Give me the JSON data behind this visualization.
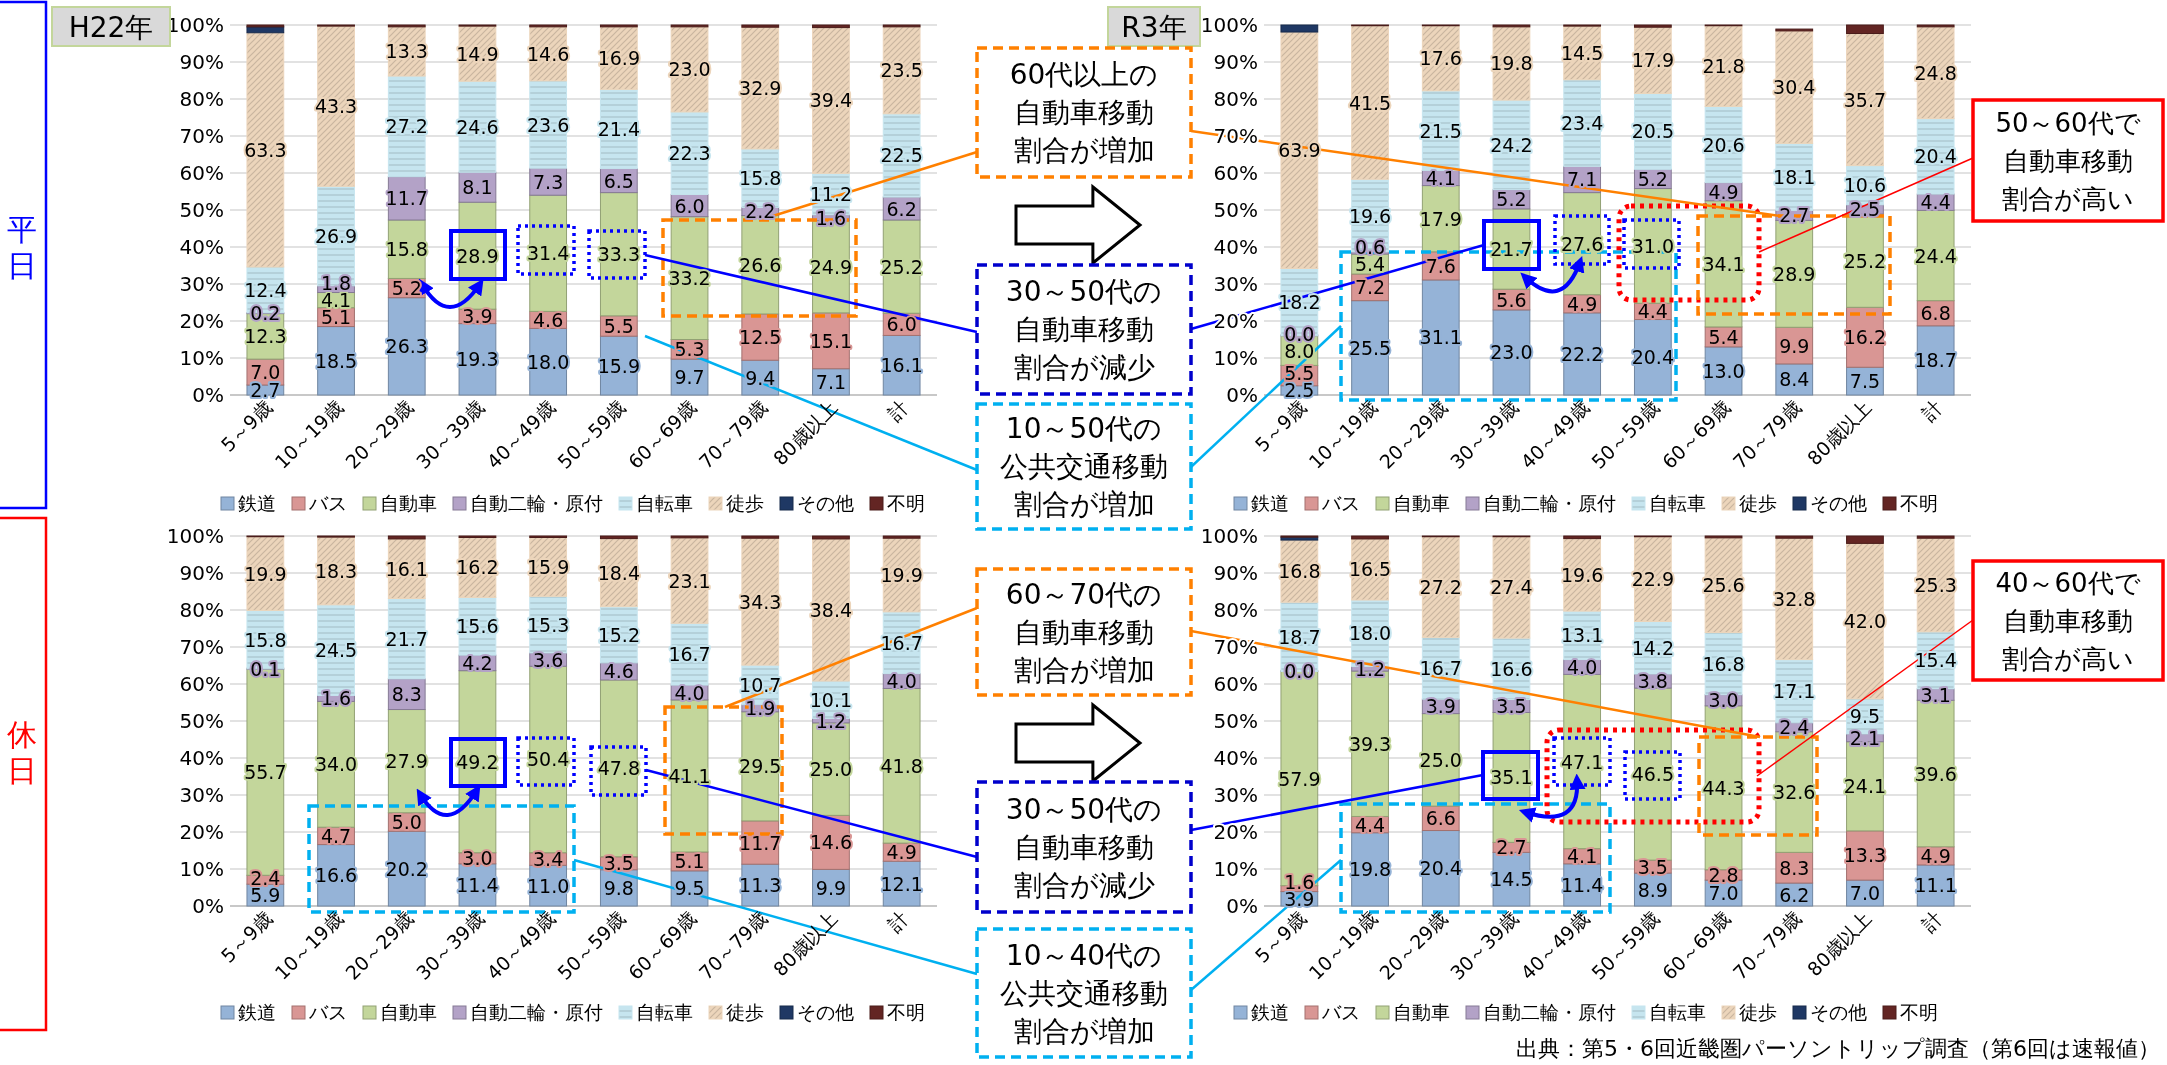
{
  "chart_data": [
    {
      "type": "bar",
      "stacked": true,
      "title": "H22年",
      "categories": [
        "5～9歳",
        "10～19歳",
        "20～29歳",
        "30～39歳",
        "40～49歳",
        "50～59歳",
        "60～69歳",
        "70～79歳",
        "80歳以上",
        "計"
      ],
      "ylim": [
        0,
        100
      ],
      "yticks": [
        {
          "value": 0,
          "label": "0%"
        },
        {
          "value": 10,
          "label": "10%"
        },
        {
          "value": 20,
          "label": "20%"
        },
        {
          "value": 30,
          "label": "30%"
        },
        {
          "value": 40,
          "label": "40%"
        },
        {
          "value": 50,
          "label": "50%"
        },
        {
          "value": 60,
          "label": "60%"
        },
        {
          "value": 70,
          "label": "70%"
        },
        {
          "value": 80,
          "label": "80%"
        },
        {
          "value": 90,
          "label": "90%"
        },
        {
          "value": 100,
          "label": "100%"
        }
      ],
      "grid": "y",
      "legend": "bottom",
      "series": [
        {
          "name": "鉄道",
          "color": "#95b3d7",
          "values": [
            2.7,
            18.5,
            26.3,
            19.3,
            18.0,
            15.9,
            9.7,
            9.4,
            7.1,
            16.1
          ],
          "value_labels": [
            "2.7",
            "18.5",
            "26.3",
            "19.3",
            "18.0",
            "15.9",
            "9.7",
            "9.4",
            "7.1",
            "16.1"
          ]
        },
        {
          "name": "バス",
          "color": "#d99694",
          "values": [
            7.0,
            5.1,
            5.2,
            3.9,
            4.6,
            5.5,
            5.3,
            12.5,
            15.1,
            6.0
          ],
          "value_labels": [
            "7.0",
            "5.1",
            "5.2",
            "3.9",
            "4.6",
            "5.5",
            "5.3",
            "12.5",
            "15.1",
            "6.0"
          ]
        },
        {
          "name": "自動車",
          "color": "#c3d69b",
          "values": [
            12.3,
            4.1,
            15.8,
            28.9,
            31.4,
            33.3,
            33.2,
            26.6,
            24.9,
            25.2
          ],
          "value_labels": [
            "12.3",
            "4.1",
            "15.8",
            "28.9",
            "31.4",
            "33.3",
            "33.2",
            "26.6",
            "24.9",
            "25.2"
          ]
        },
        {
          "name": "自動二輪・原付",
          "color": "#b3a2c7",
          "values": [
            0.2,
            1.8,
            11.7,
            8.1,
            7.3,
            6.5,
            6.0,
            2.2,
            1.6,
            6.2
          ],
          "value_labels": [
            "0.2",
            "1.8",
            "11.7",
            "8.1",
            "7.3",
            "6.5",
            "6.0",
            "2.2",
            "1.6",
            "6.2"
          ]
        },
        {
          "name": "自転車",
          "color": "#c6e5ef",
          "values": [
            12.4,
            26.9,
            27.2,
            24.6,
            23.6,
            21.4,
            22.3,
            15.8,
            11.2,
            22.5
          ],
          "value_labels": [
            "12.4",
            "26.9",
            "27.2",
            "24.6",
            "23.6",
            "21.4",
            "22.3",
            "15.8",
            "11.2",
            "22.5"
          ]
        },
        {
          "name": "徒歩",
          "color": "#ecd5bb",
          "values": [
            63.3,
            43.3,
            13.3,
            14.9,
            14.6,
            16.9,
            23.0,
            32.9,
            39.4,
            23.5
          ],
          "value_labels": [
            "63.3",
            "43.3",
            "13.3",
            "14.9",
            "14.6",
            "16.9",
            "23.0",
            "32.9",
            "39.4",
            "23.5"
          ]
        },
        {
          "name": "その他",
          "color": "#1f3864",
          "values": [
            1.6,
            0,
            0,
            0,
            0,
            0,
            0,
            0,
            0,
            0
          ]
        },
        {
          "name": "不明",
          "color": "#632523",
          "values": [
            0.5,
            0.3,
            0.5,
            0.3,
            0.5,
            0.5,
            0.5,
            0.6,
            0.7,
            0.5
          ]
        }
      ]
    },
    {
      "type": "bar",
      "stacked": true,
      "title": "R3年",
      "categories": [
        "5～9歳",
        "10～19歳",
        "20～29歳",
        "30～39歳",
        "40～49歳",
        "50～59歳",
        "60～69歳",
        "70～79歳",
        "80歳以上",
        "計"
      ],
      "ylim": [
        0,
        100
      ],
      "yticks": [
        {
          "value": 0,
          "label": "0%"
        },
        {
          "value": 10,
          "label": "10%"
        },
        {
          "value": 20,
          "label": "20%"
        },
        {
          "value": 30,
          "label": "30%"
        },
        {
          "value": 40,
          "label": "40%"
        },
        {
          "value": 50,
          "label": "50%"
        },
        {
          "value": 60,
          "label": "60%"
        },
        {
          "value": 70,
          "label": "70%"
        },
        {
          "value": 80,
          "label": "80%"
        },
        {
          "value": 90,
          "label": "90%"
        },
        {
          "value": 100,
          "label": "100%"
        }
      ],
      "grid": "y",
      "legend": "bottom",
      "series": [
        {
          "name": "鉄道",
          "color": "#95b3d7",
          "values": [
            2.5,
            25.5,
            31.1,
            23.0,
            22.2,
            20.4,
            13.0,
            8.4,
            7.5,
            18.7
          ],
          "value_labels": [
            "2.5",
            "25.5",
            "31.1",
            "23.0",
            "22.2",
            "20.4",
            "13.0",
            "8.4",
            "7.5",
            "18.7"
          ]
        },
        {
          "name": "バス",
          "color": "#d99694",
          "values": [
            5.5,
            7.2,
            7.6,
            5.6,
            4.9,
            4.4,
            5.4,
            9.9,
            16.2,
            6.8
          ],
          "value_labels": [
            "5.5",
            "7.2",
            "7.6",
            "5.6",
            "4.9",
            "4.4",
            "5.4",
            "9.9",
            "16.2",
            "6.8"
          ]
        },
        {
          "name": "自動車",
          "color": "#c3d69b",
          "values": [
            8.0,
            5.4,
            17.9,
            21.7,
            27.6,
            31.0,
            34.1,
            28.9,
            25.2,
            24.4
          ],
          "value_labels": [
            "8.0",
            "5.4",
            "17.9",
            "21.7",
            "27.6",
            "31.0",
            "34.1",
            "28.9",
            "25.2",
            "24.4"
          ]
        },
        {
          "name": "自動二輪・原付",
          "color": "#b3a2c7",
          "values": [
            0.0,
            0.6,
            4.1,
            5.2,
            7.1,
            5.2,
            4.9,
            2.7,
            2.5,
            4.4
          ],
          "value_labels": [
            "0.0",
            "0.6",
            "4.1",
            "5.2",
            "7.1",
            "5.2",
            "4.9",
            "2.7",
            "2.5",
            "4.4"
          ]
        },
        {
          "name": "自転車",
          "color": "#c6e5ef",
          "values": [
            18.2,
            19.6,
            21.5,
            24.2,
            23.4,
            20.5,
            20.6,
            18.1,
            10.6,
            20.4
          ],
          "value_labels": [
            "18.2",
            "19.6",
            "21.5",
            "24.2",
            "23.4",
            "20.5",
            "20.6",
            "18.1",
            "10.6",
            "20.4"
          ]
        },
        {
          "name": "徒歩",
          "color": "#ecd5bb",
          "values": [
            63.9,
            41.5,
            17.6,
            19.8,
            14.5,
            17.9,
            21.8,
            30.4,
            35.7,
            24.8
          ],
          "value_labels": [
            "63.9",
            "41.5",
            "17.6",
            "19.8",
            "14.5",
            "17.9",
            "21.8",
            "30.4",
            "35.7",
            "24.8"
          ]
        },
        {
          "name": "その他",
          "color": "#1f3864",
          "values": [
            1.9,
            0,
            0,
            0,
            0,
            0,
            0,
            0,
            0,
            0
          ]
        },
        {
          "name": "不明",
          "color": "#632523",
          "values": [
            0,
            0.2,
            0.2,
            0.5,
            0.3,
            0.6,
            0.2,
            0.5,
            2.3,
            0.5
          ]
        }
      ]
    },
    {
      "type": "bar",
      "stacked": true,
      "categories": [
        "5～9歳",
        "10～19歳",
        "20～29歳",
        "30～39歳",
        "40～49歳",
        "50～59歳",
        "60～69歳",
        "70～79歳",
        "80歳以上",
        "計"
      ],
      "ylim": [
        0,
        100
      ],
      "yticks": [
        {
          "value": 0,
          "label": "0%"
        },
        {
          "value": 10,
          "label": "10%"
        },
        {
          "value": 20,
          "label": "20%"
        },
        {
          "value": 30,
          "label": "30%"
        },
        {
          "value": 40,
          "label": "40%"
        },
        {
          "value": 50,
          "label": "50%"
        },
        {
          "value": 60,
          "label": "60%"
        },
        {
          "value": 70,
          "label": "70%"
        },
        {
          "value": 80,
          "label": "80%"
        },
        {
          "value": 90,
          "label": "90%"
        },
        {
          "value": 100,
          "label": "100%"
        }
      ],
      "grid": "y",
      "legend": "bottom",
      "series": [
        {
          "name": "鉄道",
          "color": "#95b3d7",
          "values": [
            5.9,
            16.6,
            20.2,
            11.4,
            11.0,
            9.8,
            9.5,
            11.3,
            9.9,
            12.1
          ],
          "value_labels": [
            "5.9",
            "16.6",
            "20.2",
            "11.4",
            "11.0",
            "9.8",
            "9.5",
            "11.3",
            "9.9",
            "12.1"
          ]
        },
        {
          "name": "バス",
          "color": "#d99694",
          "values": [
            2.4,
            4.7,
            5.0,
            3.0,
            3.4,
            3.5,
            5.1,
            11.7,
            14.6,
            4.9
          ],
          "value_labels": [
            "2.4",
            "4.7",
            "5.0",
            "3.0",
            "3.4",
            "3.5",
            "5.1",
            "11.7",
            "14.6",
            "4.9"
          ]
        },
        {
          "name": "自動車",
          "color": "#c3d69b",
          "values": [
            55.7,
            34.0,
            27.9,
            49.2,
            50.4,
            47.8,
            41.1,
            29.5,
            25.0,
            41.8
          ],
          "value_labels": [
            "55.7",
            "34.0",
            "27.9",
            "49.2",
            "50.4",
            "47.8",
            "41.1",
            "29.5",
            "25.0",
            "41.8"
          ]
        },
        {
          "name": "自動二輪・原付",
          "color": "#b3a2c7",
          "values": [
            0.1,
            1.6,
            8.3,
            4.2,
            3.6,
            4.6,
            4.0,
            1.9,
            1.2,
            4.0
          ],
          "value_labels": [
            "0.1",
            "1.6",
            "8.3",
            "4.2",
            "3.6",
            "4.6",
            "4.0",
            "1.9",
            "1.2",
            "4.0"
          ]
        },
        {
          "name": "自転車",
          "color": "#c6e5ef",
          "values": [
            15.8,
            24.5,
            21.7,
            15.6,
            15.3,
            15.2,
            16.7,
            10.7,
            10.1,
            16.7
          ],
          "value_labels": [
            "15.8",
            "24.5",
            "21.7",
            "15.6",
            "15.3",
            "15.2",
            "16.7",
            "10.7",
            "10.1",
            "16.7"
          ]
        },
        {
          "name": "徒歩",
          "color": "#ecd5bb",
          "values": [
            19.9,
            18.3,
            16.1,
            16.2,
            15.9,
            18.4,
            23.1,
            34.3,
            38.4,
            19.9
          ],
          "value_labels": [
            "19.9",
            "18.3",
            "16.1",
            "16.2",
            "15.9",
            "18.4",
            "23.1",
            "34.3",
            "38.4",
            "19.9"
          ]
        },
        {
          "name": "その他",
          "color": "#1f3864",
          "values": [
            0,
            0,
            0,
            0,
            0,
            0,
            0,
            0,
            0,
            0
          ]
        },
        {
          "name": "不明",
          "color": "#632523",
          "values": [
            0.2,
            0.3,
            0.8,
            0.4,
            0.4,
            0.7,
            0.5,
            0.6,
            0.8,
            0.6
          ]
        }
      ]
    },
    {
      "type": "bar",
      "stacked": true,
      "categories": [
        "5～9歳",
        "10～19歳",
        "20～29歳",
        "30～39歳",
        "40～49歳",
        "50～59歳",
        "60～69歳",
        "70～79歳",
        "80歳以上",
        "計"
      ],
      "ylim": [
        0,
        100
      ],
      "yticks": [
        {
          "value": 0,
          "label": "0%"
        },
        {
          "value": 10,
          "label": "10%"
        },
        {
          "value": 20,
          "label": "20%"
        },
        {
          "value": 30,
          "label": "30%"
        },
        {
          "value": 40,
          "label": "40%"
        },
        {
          "value": 50,
          "label": "50%"
        },
        {
          "value": 60,
          "label": "60%"
        },
        {
          "value": 70,
          "label": "70%"
        },
        {
          "value": 80,
          "label": "80%"
        },
        {
          "value": 90,
          "label": "90%"
        },
        {
          "value": 100,
          "label": "100%"
        }
      ],
      "grid": "y",
      "legend": "bottom",
      "series": [
        {
          "name": "鉄道",
          "color": "#95b3d7",
          "values": [
            3.9,
            19.8,
            20.4,
            14.5,
            11.4,
            8.9,
            7.0,
            6.2,
            7.0,
            11.1
          ],
          "value_labels": [
            "3.9",
            "19.8",
            "20.4",
            "14.5",
            "11.4",
            "8.9",
            "7.0",
            "6.2",
            "7.0",
            "11.1"
          ]
        },
        {
          "name": "バス",
          "color": "#d99694",
          "values": [
            1.6,
            4.4,
            6.6,
            2.7,
            4.1,
            3.5,
            2.8,
            8.3,
            13.3,
            4.9
          ],
          "value_labels": [
            "1.6",
            "4.4",
            "6.6",
            "2.7",
            "4.1",
            "3.5",
            "2.8",
            "8.3",
            "13.3",
            "4.9"
          ]
        },
        {
          "name": "自動車",
          "color": "#c3d69b",
          "values": [
            57.9,
            39.3,
            25.0,
            35.1,
            47.1,
            46.5,
            44.3,
            32.6,
            24.1,
            39.6
          ],
          "value_labels": [
            "57.9",
            "39.3",
            "25.0",
            "35.1",
            "47.1",
            "46.5",
            "44.3",
            "32.6",
            "24.1",
            "39.6"
          ]
        },
        {
          "name": "自動二輪・原付",
          "color": "#b3a2c7",
          "values": [
            0.0,
            1.2,
            3.9,
            3.5,
            4.0,
            3.8,
            3.0,
            2.4,
            2.1,
            3.1
          ],
          "value_labels": [
            "0.0",
            "1.2",
            "3.9",
            "3.5",
            "4.0",
            "3.8",
            "3.0",
            "2.4",
            "2.1",
            "3.1"
          ]
        },
        {
          "name": "自転車",
          "color": "#c6e5ef",
          "values": [
            18.7,
            18.0,
            16.7,
            16.6,
            13.1,
            14.2,
            16.8,
            17.1,
            9.5,
            15.4
          ],
          "value_labels": [
            "18.7",
            "18.0",
            "16.7",
            "16.6",
            "13.1",
            "14.2",
            "16.8",
            "17.1",
            "9.5",
            "15.4"
          ]
        },
        {
          "name": "徒歩",
          "color": "#ecd5bb",
          "values": [
            16.8,
            16.5,
            27.2,
            27.4,
            19.6,
            22.9,
            25.6,
            32.8,
            42.0,
            25.3
          ],
          "value_labels": [
            "16.8",
            "16.5",
            "27.2",
            "27.4",
            "19.6",
            "22.9",
            "25.6",
            "32.8",
            "42.0",
            "25.3"
          ]
        },
        {
          "name": "その他",
          "color": "#1f3864",
          "values": [
            0.8,
            0,
            0,
            0,
            0,
            0,
            0,
            0,
            0,
            0
          ]
        },
        {
          "name": "不明",
          "color": "#632523",
          "values": [
            0.3,
            0.8,
            0.2,
            0.2,
            0.7,
            0.2,
            0.5,
            0.6,
            2.0,
            0.6
          ]
        }
      ]
    },
    {
      "type": "other",
      "annotations": [
        "平日",
        "休日",
        "60代以上の自動車移動割合が増加",
        "30～50代の自動車移動割合が減少",
        "10～50代の公共交通移動割合が増加",
        "50～60代で自動車移動割合が高い",
        "60～70代の自動車移動割合が増加",
        "30～50代の自動車移動割合が減少",
        "10～40代の公共交通移動割合が増加",
        "40～60代で自動車移動割合が高い",
        "出典：第5・6回近畿圏パーソントリップ調査（第6回は速報値）"
      ]
    }
  ]
}
